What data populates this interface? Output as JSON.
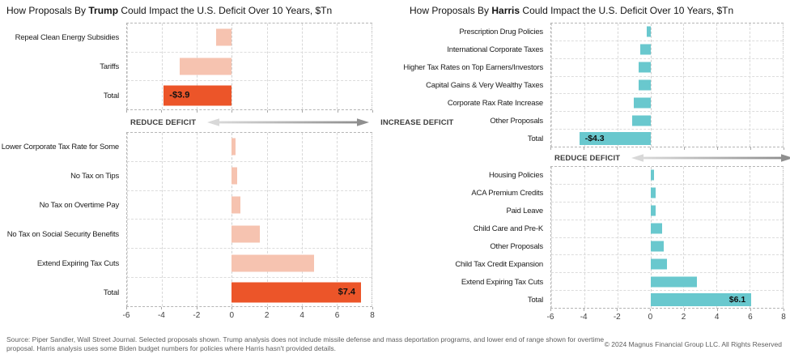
{
  "chart_data": [
    {
      "type": "bar",
      "orientation": "horizontal-diverging",
      "title": {
        "prefix": "How Proposals By ",
        "name": "Trump",
        "suffix": " Could Impact the U.S. Deficit Over 10 Years, $Tn"
      },
      "axis": {
        "min": -6,
        "max": 8,
        "tick_values": [
          -6,
          -4,
          -2,
          0,
          2,
          4,
          6,
          8
        ],
        "tick_labels": [
          "-6",
          "-4",
          "-2",
          "0",
          "2",
          "4",
          "6",
          "8"
        ],
        "grid": true
      },
      "direction_labels": {
        "reduce": "REDUCE DEFICIT",
        "increase": "INCREASE DEFICIT"
      },
      "colors": {
        "bar": "#F6C3B0",
        "total": "#EC5529"
      },
      "sections": [
        {
          "id": "reduce-deficit",
          "rows": [
            {
              "label": "Repeal Clean Energy Subsidies",
              "value": -0.9
            },
            {
              "label": "Tariffs",
              "value": -3.0
            },
            {
              "label": "Total",
              "value": -3.9,
              "total": true,
              "value_label": "-$3.9"
            }
          ]
        },
        {
          "id": "increase-deficit",
          "rows": [
            {
              "label": "Lower Corporate Tax Rate for Some",
              "value": 0.2
            },
            {
              "label": "No Tax on Tips",
              "value": 0.3
            },
            {
              "label": "No Tax on Overtime Pay",
              "value": 0.5
            },
            {
              "label": "No Tax on Social Security Benefits",
              "value": 1.6
            },
            {
              "label": "Extend Expiring Tax Cuts",
              "value": 4.7
            },
            {
              "label": "Total",
              "value": 7.4,
              "total": true,
              "value_label": "$7.4"
            }
          ]
        }
      ]
    },
    {
      "type": "bar",
      "orientation": "horizontal-diverging",
      "title": {
        "prefix": "How Proposals By ",
        "name": "Harris",
        "suffix": " Could Impact the U.S. Deficit Over 10 Years, $Tn"
      },
      "axis": {
        "min": -6,
        "max": 8,
        "tick_values": [
          -6,
          -4,
          -2,
          0,
          2,
          4,
          6,
          8
        ],
        "tick_labels": [
          "-6",
          "-4",
          "-2",
          "0",
          "2",
          "4",
          "6",
          "8"
        ],
        "grid": true
      },
      "direction_labels": {
        "reduce": "REDUCE DEFICIT",
        "increase": "INCREASE DEFICIT"
      },
      "colors": {
        "bar": "#69C8CE",
        "total": "#69C8CE"
      },
      "sections": [
        {
          "id": "reduce-deficit",
          "rows": [
            {
              "label": "Prescription Drug Policies",
              "value": -0.2
            },
            {
              "label": "International Corporate Taxes",
              "value": -0.6
            },
            {
              "label": "Higher Tax Rates on Top Earners/Investors",
              "value": -0.7
            },
            {
              "label": "Capital Gains & Very Wealthy Taxes",
              "value": -0.7
            },
            {
              "label": "Corporate Rax Rate Increase",
              "value": -1.0
            },
            {
              "label": "Other Proposals",
              "value": -1.1
            },
            {
              "label": "Total",
              "value": -4.3,
              "total": true,
              "value_label": "-$4.3"
            }
          ]
        },
        {
          "id": "increase-deficit",
          "rows": [
            {
              "label": "Housing Policies",
              "value": 0.2
            },
            {
              "label": "ACA Premium Credits",
              "value": 0.3
            },
            {
              "label": "Paid Leave",
              "value": 0.3
            },
            {
              "label": "Child Care and Pre-K",
              "value": 0.7
            },
            {
              "label": "Other Proposals",
              "value": 0.8
            },
            {
              "label": "Child Tax Credit Expansion",
              "value": 1.0
            },
            {
              "label": "Extend Expiring Tax Cuts",
              "value": 2.8
            },
            {
              "label": "Total",
              "value": 6.1,
              "total": true,
              "value_label": "$6.1"
            }
          ]
        }
      ]
    }
  ],
  "footer": {
    "source_note": "Source: Piper Sandler, Wall Street Journal. Selected proposals shown. Trump analysis does not include missile defense and mass deportation programs, and lower end of range shown for overtime proposal. Harris analysis uses some Biden budget numbers for policies where Harris hasn't provided details.",
    "copyright": "© 2024 Magnus Financial Group LLC. All Rights Reserved"
  }
}
